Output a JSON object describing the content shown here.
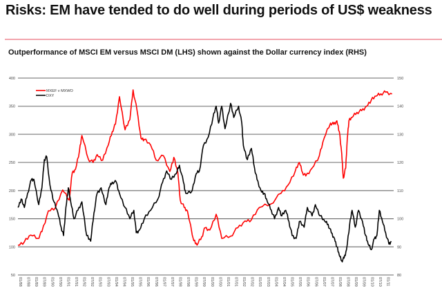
{
  "header": {
    "title": "Risks: EM have tended to do well during periods of US$ weakness",
    "subtitle": "Outperformance of MSCI EM versus MSCI DM (LHS) shown against the Dollar currency index (RHS)",
    "divider_color": "#f2a4ac"
  },
  "chart_data": {
    "type": "line",
    "title": "Outperformance of MSCI EM versus MSCI DM (LHS) shown against the Dollar currency index (RHS)",
    "xlabel": "",
    "xlim": [
      1988.0,
      2011.5
    ],
    "ylim_left": [
      50,
      400
    ],
    "ylim_right": [
      80,
      150
    ],
    "yticks_left": [
      400,
      350,
      300,
      250,
      200,
      150,
      100,
      50
    ],
    "yticks_right": [
      150,
      140,
      130,
      120,
      110,
      100,
      90,
      80
    ],
    "xticks": [
      "01/88",
      "07/88",
      "01/89",
      "07/89",
      "01/90",
      "07/90",
      "01/91",
      "07/91",
      "01/92",
      "07/92",
      "01/93",
      "07/93",
      "01/94",
      "07/94",
      "01/95",
      "07/95",
      "01/96",
      "07/96",
      "01/97",
      "07/97",
      "01/98",
      "07/98",
      "01/99",
      "07/99",
      "01/00",
      "07/00",
      "01/01",
      "07/01",
      "01/02",
      "07/02",
      "01/03",
      "07/03",
      "01/04",
      "07/04",
      "01/05",
      "07/05",
      "01/06",
      "07/06",
      "01/07",
      "07/07",
      "01/08",
      "07/08",
      "01/09",
      "07/09",
      "01/10",
      "07/10",
      "01/11"
    ],
    "grid": true,
    "gridline_color": "#999999",
    "legend": {
      "position": "top-left",
      "entries": [
        "MXEF v MXWO",
        "DXY"
      ]
    },
    "series": [
      {
        "name": "MXEF v MXWO",
        "axis": "left",
        "color": "#ff0000",
        "x": [
          1988.0,
          1988.4,
          1988.8,
          1989.25,
          1989.5,
          1989.9,
          1990.35,
          1990.8,
          1991.2,
          1991.4,
          1991.6,
          1991.85,
          1992.0,
          1992.4,
          1992.7,
          1992.95,
          1993.3,
          1993.65,
          1993.9,
          1994.1,
          1994.35,
          1994.7,
          1995.0,
          1995.2,
          1995.45,
          1995.7,
          1995.9,
          1996.3,
          1996.65,
          1997.1,
          1997.5,
          1997.75,
          1998.0,
          1998.15,
          1998.4,
          1998.6,
          1999.0,
          1999.2,
          1999.5,
          1999.7,
          2000.0,
          2000.4,
          2000.75,
          2001.3,
          2001.75,
          2002.2,
          2002.6,
          2003.1,
          2003.8,
          2004.45,
          2004.9,
          2005.35,
          2005.6,
          2005.8,
          2006.0,
          2006.4,
          2006.85,
          2007.15,
          2007.55,
          2007.75,
          2007.95,
          2008.1,
          2008.25,
          2008.35,
          2008.5,
          2008.6,
          2008.7,
          2008.9,
          2009.2,
          2009.5,
          2009.8,
          2010.1,
          2010.4,
          2010.7,
          2011.0,
          2011.4
        ],
        "values": [
          103,
          109,
          121,
          115,
          127,
          164,
          170,
          201,
          183,
          232,
          238,
          271,
          298,
          256,
          250,
          264,
          254,
          281,
          305,
          318,
          367,
          308,
          326,
          379,
          342,
          293,
          291,
          281,
          254,
          262,
          234,
          259,
          232,
          183,
          170,
          164,
          111,
          103,
          118,
          134,
          130,
          158,
          115,
          119,
          134,
          146,
          148,
          170,
          176,
          195,
          210,
          235,
          250,
          232,
          226,
          240,
          262,
          293,
          320,
          318,
          324,
          305,
          266,
          222,
          240,
          293,
          324,
          330,
          339,
          342,
          350,
          361,
          368,
          372,
          375,
          372
        ]
      },
      {
        "name": "DXY",
        "axis": "right",
        "color": "#000000",
        "x": [
          1988.0,
          1988.2,
          1988.4,
          1988.6,
          1988.85,
          1989.0,
          1989.3,
          1989.5,
          1989.65,
          1989.8,
          1990.0,
          1990.25,
          1990.5,
          1990.7,
          1990.85,
          1991.0,
          1991.15,
          1991.3,
          1991.5,
          1991.75,
          1992.0,
          1992.3,
          1992.55,
          1992.75,
          1992.95,
          1993.2,
          1993.5,
          1993.7,
          1993.9,
          1994.15,
          1994.35,
          1994.7,
          1995.0,
          1995.25,
          1995.4,
          1995.6,
          1995.9,
          1996.3,
          1996.75,
          1997.05,
          1997.3,
          1997.6,
          1997.9,
          1998.1,
          1998.35,
          1998.5,
          1998.9,
          1999.15,
          1999.35,
          1999.6,
          1999.9,
          2000.2,
          2000.4,
          2000.55,
          2000.75,
          2000.95,
          2001.3,
          2001.5,
          2001.8,
          2002.0,
          2002.1,
          2002.35,
          2002.6,
          2002.8,
          2002.95,
          2003.2,
          2003.4,
          2003.6,
          2003.85,
          2004.05,
          2004.3,
          2004.5,
          2004.75,
          2004.95,
          2005.15,
          2005.4,
          2005.6,
          2005.9,
          2006.1,
          2006.4,
          2006.6,
          2006.9,
          2007.2,
          2007.4,
          2007.6,
          2007.8,
          2007.95,
          2008.1,
          2008.25,
          2008.4,
          2008.55,
          2008.75,
          2008.9,
          2009.1,
          2009.3,
          2009.55,
          2009.75,
          2009.9,
          2010.1,
          2010.3,
          2010.45,
          2010.6,
          2010.8,
          2011.0,
          2011.2,
          2011.35
        ],
        "values": [
          104,
          107,
          104,
          109,
          114,
          114,
          105,
          111,
          121,
          122,
          112,
          106,
          102,
          97,
          94,
          104,
          111,
          106,
          100,
          103,
          106,
          94,
          92,
          102,
          109,
          111,
          105,
          111,
          113,
          113,
          109,
          104,
          100,
          103,
          95,
          96,
          100,
          103,
          107,
          113,
          117,
          114,
          116,
          119,
          113,
          109,
          110,
          116,
          117,
          126,
          129,
          136,
          140,
          134,
          140,
          132,
          141,
          136,
          140,
          134,
          126,
          121,
          125,
          118,
          114,
          110,
          109,
          106,
          103,
          100,
          104,
          101,
          103,
          99,
          94,
          93,
          99,
          97,
          104,
          101,
          105,
          101,
          99,
          98,
          95,
          93,
          90,
          87,
          85,
          86,
          89,
          98,
          103,
          97,
          103,
          99,
          94,
          91,
          89,
          93,
          94,
          103,
          99,
          95,
          91,
          92
        ]
      }
    ]
  }
}
